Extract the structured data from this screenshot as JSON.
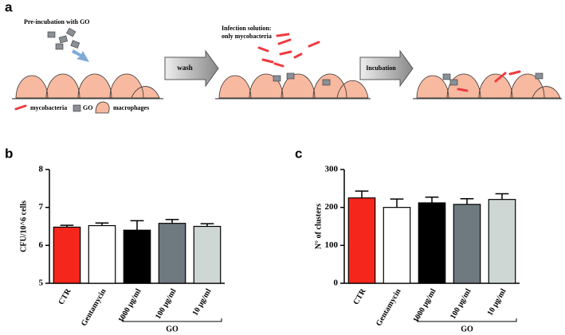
{
  "panel_labels": [
    "a",
    "b",
    "c"
  ],
  "schematic": {
    "step1": "Pre-incubation with GO",
    "arrow1": "wash",
    "step2_line1": "Infection solution:",
    "step2_line2": "only mycobacteria",
    "arrow2": "Incubation",
    "legend": [
      "mycobacteria",
      "GO",
      "macrophages"
    ]
  },
  "chart_data": [
    {
      "type": "bar",
      "y_label": "CFU/10^6 cells",
      "categories": [
        "CTR",
        "Gentamycin",
        "1000 μg/ml",
        "100 μg/ml",
        "10 μg/ml"
      ],
      "values": [
        6.48,
        6.52,
        6.4,
        6.58,
        6.5
      ],
      "errors": [
        0.05,
        0.07,
        0.25,
        0.1,
        0.07
      ],
      "colors": [
        "#f5261b",
        "#ffffff",
        "#000000",
        "#6e7a80",
        "#cfd7d5"
      ],
      "ylim": [
        5,
        8
      ],
      "yticks": [
        5,
        6,
        7,
        8
      ],
      "group_label": "GO"
    },
    {
      "type": "bar",
      "y_label": "N° of clusters",
      "categories": [
        "CTR",
        "Gentamycin",
        "1000 μg/ml",
        "100 μg/ml",
        "10 μg/ml"
      ],
      "values": [
        225,
        200,
        212,
        208,
        221
      ],
      "errors": [
        18,
        22,
        15,
        15,
        15
      ],
      "colors": [
        "#f5261b",
        "#ffffff",
        "#000000",
        "#6e7a80",
        "#cfd7d5"
      ],
      "ylim": [
        0,
        300
      ],
      "yticks": [
        0,
        100,
        200,
        300
      ],
      "group_label": "GO"
    }
  ]
}
